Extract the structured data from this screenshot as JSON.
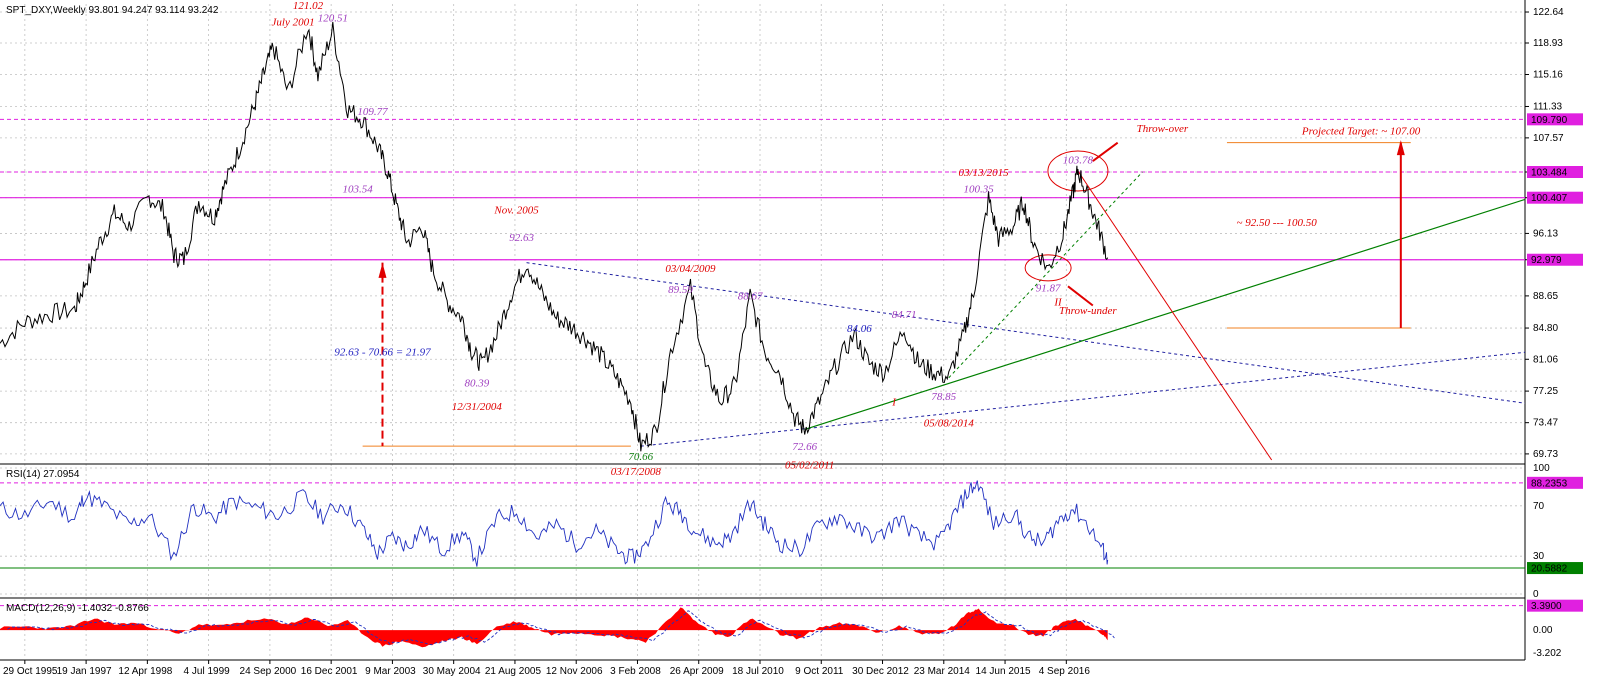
{
  "header": {
    "main": "SPT_DXY,Weekly  93.801 94.247 93.114 93.242",
    "rsi": "RSI(14) 27.0954",
    "macd": "MACD(12,26,9) -1.4032 -0.8766"
  },
  "colors": {
    "price": "#000000",
    "annotation_red": "#e00000",
    "annotation_purple": "#a040c0",
    "annotation_blue": "#2020c0",
    "annotation_green": "#108010",
    "level_magenta": "#e020e0",
    "trend_green": "#008000",
    "trend_blue": "#2020a0",
    "target_orange": "#f08020",
    "rsi_line": "#2030c0",
    "macd_fill": "#ff0000",
    "grid": "#c0c0c0"
  },
  "chart_data": [
    {
      "type": "line",
      "name": "price",
      "x_labels": [
        "29 Oct 1995",
        "19 Jan 1997",
        "12 Apr 1998",
        "4 Jul 1999",
        "24 Sep 2000",
        "16 Dec 2001",
        "9 Mar 2003",
        "30 May 2004",
        "21 Aug 2005",
        "12 Nov 2006",
        "3 Feb 2008",
        "26 Apr 2009",
        "18 Jul 2010",
        "9 Oct 2011",
        "30 Dec 2012",
        "23 Mar 2014",
        "14 Jun 2015",
        "4 Sep 2016"
      ],
      "x_range": [
        1995.3,
        2026.0
      ],
      "y_ticks": [
        122.64,
        118.93,
        115.16,
        111.33,
        107.57,
        103.484,
        100.407,
        96.13,
        92.979,
        88.65,
        84.8,
        81.06,
        77.25,
        73.47,
        69.73
      ],
      "y_range": [
        69.0,
        123.6
      ],
      "price_points": [
        [
          1995.3,
          83.0
        ],
        [
          1995.8,
          85.5
        ],
        [
          1996.3,
          86.5
        ],
        [
          1996.8,
          87.0
        ],
        [
          1997.0,
          90.0
        ],
        [
          1997.3,
          95.0
        ],
        [
          1997.6,
          98.5
        ],
        [
          1997.9,
          97.0
        ],
        [
          1998.3,
          100.5
        ],
        [
          1998.6,
          99.0
        ],
        [
          1998.8,
          93.5
        ],
        [
          1999.0,
          93.0
        ],
        [
          1999.3,
          100.0
        ],
        [
          1999.6,
          98.0
        ],
        [
          1999.8,
          101.5
        ],
        [
          2000.1,
          106.0
        ],
        [
          2000.4,
          111.0
        ],
        [
          2000.6,
          115.0
        ],
        [
          2000.8,
          118.5
        ],
        [
          2001.1,
          113.0
        ],
        [
          2001.5,
          121.02
        ],
        [
          2001.7,
          115.0
        ],
        [
          2002.0,
          120.51
        ],
        [
          2002.3,
          111.0
        ],
        [
          2002.6,
          109.77
        ],
        [
          2002.9,
          106.5
        ],
        [
          2003.1,
          103.54
        ],
        [
          2003.3,
          99.0
        ],
        [
          2003.5,
          95.0
        ],
        [
          2003.8,
          97.0
        ],
        [
          2004.0,
          92.0
        ],
        [
          2004.3,
          88.0
        ],
        [
          2004.6,
          86.0
        ],
        [
          2004.8,
          82.0
        ],
        [
          2005.0,
          80.39
        ],
        [
          2005.3,
          84.0
        ],
        [
          2005.6,
          89.0
        ],
        [
          2005.9,
          92.63
        ],
        [
          2006.2,
          89.0
        ],
        [
          2006.5,
          86.0
        ],
        [
          2006.8,
          85.0
        ],
        [
          2007.1,
          83.5
        ],
        [
          2007.4,
          81.5
        ],
        [
          2007.7,
          79.0
        ],
        [
          2008.0,
          76.0
        ],
        [
          2008.2,
          70.66
        ],
        [
          2008.5,
          72.5
        ],
        [
          2008.8,
          82.0
        ],
        [
          2009.2,
          89.59
        ],
        [
          2009.5,
          80.0
        ],
        [
          2009.8,
          76.0
        ],
        [
          2010.1,
          78.0
        ],
        [
          2010.4,
          88.67
        ],
        [
          2010.7,
          82.0
        ],
        [
          2011.0,
          79.5
        ],
        [
          2011.3,
          74.0
        ],
        [
          2011.5,
          72.66
        ],
        [
          2011.8,
          76.0
        ],
        [
          2012.1,
          80.0
        ],
        [
          2012.5,
          84.06
        ],
        [
          2012.8,
          80.5
        ],
        [
          2013.1,
          79.5
        ],
        [
          2013.5,
          84.71
        ],
        [
          2013.8,
          80.5
        ],
        [
          2014.1,
          79.5
        ],
        [
          2014.4,
          78.85
        ],
        [
          2014.7,
          84.0
        ],
        [
          2014.9,
          89.0
        ],
        [
          2015.2,
          100.35
        ],
        [
          2015.4,
          95.5
        ],
        [
          2015.7,
          97.0
        ],
        [
          2015.9,
          100.0
        ],
        [
          2016.1,
          95.0
        ],
        [
          2016.4,
          91.87
        ],
        [
          2016.7,
          96.0
        ],
        [
          2016.9,
          101.0
        ],
        [
          2017.0,
          103.78
        ],
        [
          2017.2,
          100.5
        ],
        [
          2017.4,
          97.0
        ],
        [
          2017.6,
          93.24
        ]
      ],
      "annotations": [
        {
          "text": "July 2001",
          "x": 2001.2,
          "y": 121.0
        },
        {
          "text": "121.02",
          "x": 2001.5,
          "y": 123.0
        },
        {
          "text": "120.51",
          "x": 2002.0,
          "y": 121.5
        },
        {
          "text": "109.77",
          "x": 2002.8,
          "y": 110.3
        },
        {
          "text": "103.54",
          "x": 2002.5,
          "y": 101.0
        },
        {
          "text": "Nov. 2005",
          "x": 2005.7,
          "y": 98.5
        },
        {
          "text": "92.63",
          "x": 2005.8,
          "y": 95.2
        },
        {
          "text": "03/04/2009",
          "x": 2009.2,
          "y": 91.5
        },
        {
          "text": "89.59",
          "x": 2009.0,
          "y": 89.0
        },
        {
          "text": "88.67",
          "x": 2010.4,
          "y": 88.2
        },
        {
          "text": "84.71",
          "x": 2013.5,
          "y": 86.0
        },
        {
          "text": "84.06",
          "x": 2012.6,
          "y": 84.3
        },
        {
          "text": "92.63 - 70.66 = 21.97",
          "x": 2003.0,
          "y": 81.5
        },
        {
          "text": "80.39",
          "x": 2004.9,
          "y": 77.8
        },
        {
          "text": "12/31/2004",
          "x": 2004.9,
          "y": 75.0
        },
        {
          "text": "78.85",
          "x": 2014.3,
          "y": 76.2
        },
        {
          "text": "05/08/2014",
          "x": 2014.4,
          "y": 73.0
        },
        {
          "text": "72.66",
          "x": 2011.5,
          "y": 70.2
        },
        {
          "text": "70.66",
          "x": 2008.2,
          "y": 69.0
        },
        {
          "text": "05/02/2011",
          "x": 2011.6,
          "y": 68.0
        },
        {
          "text": "03/17/2008",
          "x": 2008.1,
          "y": 67.2
        },
        {
          "text": "03/13/2015",
          "x": 2015.1,
          "y": 103.0
        },
        {
          "text": "100.35",
          "x": 2015.0,
          "y": 101.0
        },
        {
          "text": "103.78",
          "x": 2017.0,
          "y": 104.5
        },
        {
          "text": "Throw-over",
          "x": 2018.7,
          "y": 108.3
        },
        {
          "text": "91.87",
          "x": 2016.4,
          "y": 89.2
        },
        {
          "text": "Throw-under",
          "x": 2017.2,
          "y": 86.5
        },
        {
          "text": "~ 92.50 --- 100.50",
          "x": 2021.0,
          "y": 97.0
        },
        {
          "text": "Projected Target:  ~ 107.00",
          "x": 2022.7,
          "y": 108.0
        },
        {
          "text": "I",
          "x": 2013.3,
          "y": 75.5
        },
        {
          "text": "II",
          "x": 2016.6,
          "y": 87.5
        }
      ],
      "level_badges": [
        {
          "value": "109.790",
          "y": 109.79
        },
        {
          "value": "103.484",
          "y": 103.484
        },
        {
          "value": "100.407",
          "y": 100.407
        },
        {
          "value": "92.979",
          "y": 92.979
        }
      ]
    },
    {
      "type": "line",
      "name": "RSI(14)",
      "y_ticks": [
        100,
        70,
        30,
        0
      ],
      "y_range": [
        0,
        100
      ],
      "levels": [
        88.2353,
        20.5882
      ],
      "level_badges": [
        "88.2353",
        "20.5882"
      ],
      "rsi_points": [
        [
          1995.3,
          68
        ],
        [
          1995.8,
          62
        ],
        [
          1996.3,
          74
        ],
        [
          1996.8,
          60
        ],
        [
          1997.0,
          78
        ],
        [
          1997.4,
          70
        ],
        [
          1997.9,
          55
        ],
        [
          1998.3,
          62
        ],
        [
          1998.8,
          30
        ],
        [
          1999.2,
          70
        ],
        [
          1999.6,
          60
        ],
        [
          2000.0,
          74
        ],
        [
          2000.5,
          68
        ],
        [
          2000.9,
          62
        ],
        [
          2001.4,
          78
        ],
        [
          2001.8,
          62
        ],
        [
          2002.2,
          72
        ],
        [
          2002.6,
          52
        ],
        [
          2002.9,
          32
        ],
        [
          2003.2,
          45
        ],
        [
          2003.5,
          38
        ],
        [
          2003.8,
          52
        ],
        [
          2004.2,
          35
        ],
        [
          2004.6,
          48
        ],
        [
          2004.9,
          28
        ],
        [
          2005.3,
          60
        ],
        [
          2005.7,
          66
        ],
        [
          2006.1,
          45
        ],
        [
          2006.5,
          55
        ],
        [
          2006.9,
          40
        ],
        [
          2007.3,
          50
        ],
        [
          2007.7,
          35
        ],
        [
          2008.0,
          28
        ],
        [
          2008.3,
          38
        ],
        [
          2008.7,
          72
        ],
        [
          2009.0,
          65
        ],
        [
          2009.3,
          50
        ],
        [
          2009.7,
          40
        ],
        [
          2010.0,
          45
        ],
        [
          2010.4,
          72
        ],
        [
          2010.7,
          55
        ],
        [
          2011.0,
          40
        ],
        [
          2011.4,
          35
        ],
        [
          2011.8,
          55
        ],
        [
          2012.2,
          62
        ],
        [
          2012.6,
          50
        ],
        [
          2013.0,
          45
        ],
        [
          2013.4,
          60
        ],
        [
          2013.8,
          45
        ],
        [
          2014.2,
          40
        ],
        [
          2014.5,
          62
        ],
        [
          2014.8,
          82
        ],
        [
          2015.0,
          88
        ],
        [
          2015.3,
          55
        ],
        [
          2015.7,
          65
        ],
        [
          2016.0,
          45
        ],
        [
          2016.3,
          40
        ],
        [
          2016.6,
          58
        ],
        [
          2016.9,
          68
        ],
        [
          2017.2,
          55
        ],
        [
          2017.5,
          35
        ],
        [
          2017.6,
          27.1
        ]
      ]
    },
    {
      "type": "area",
      "name": "MACD(12,26,9)",
      "y_ticks": [
        3.39,
        0.0,
        -3.202
      ],
      "y_range": [
        -3.6,
        3.9
      ],
      "level_badges": [
        "3.3900"
      ],
      "macd_points": [
        [
          1995.3,
          0.3
        ],
        [
          1995.8,
          0.5
        ],
        [
          1996.3,
          0.2
        ],
        [
          1996.8,
          0.6
        ],
        [
          1997.2,
          1.6
        ],
        [
          1997.6,
          0.8
        ],
        [
          1998.0,
          1.0
        ],
        [
          1998.5,
          0.2
        ],
        [
          1998.9,
          -0.6
        ],
        [
          1999.3,
          0.8
        ],
        [
          1999.8,
          0.6
        ],
        [
          2000.2,
          1.2
        ],
        [
          2000.7,
          1.5
        ],
        [
          2001.1,
          0.8
        ],
        [
          2001.5,
          1.8
        ],
        [
          2001.9,
          0.6
        ],
        [
          2002.3,
          1.2
        ],
        [
          2002.7,
          -1.0
        ],
        [
          2003.0,
          -2.2
        ],
        [
          2003.4,
          -1.5
        ],
        [
          2003.8,
          -2.4
        ],
        [
          2004.2,
          -1.6
        ],
        [
          2004.6,
          -1.0
        ],
        [
          2004.9,
          -2.0
        ],
        [
          2005.3,
          0.5
        ],
        [
          2005.7,
          1.2
        ],
        [
          2006.0,
          0.4
        ],
        [
          2006.4,
          -0.6
        ],
        [
          2006.8,
          -0.3
        ],
        [
          2007.2,
          -0.5
        ],
        [
          2007.6,
          -0.8
        ],
        [
          2008.0,
          -1.2
        ],
        [
          2008.3,
          -1.6
        ],
        [
          2008.7,
          1.0
        ],
        [
          2009.0,
          3.2
        ],
        [
          2009.3,
          1.2
        ],
        [
          2009.7,
          -0.6
        ],
        [
          2010.0,
          -0.8
        ],
        [
          2010.4,
          1.6
        ],
        [
          2010.7,
          0.6
        ],
        [
          2011.0,
          -0.6
        ],
        [
          2011.4,
          -1.2
        ],
        [
          2011.8,
          0.4
        ],
        [
          2012.2,
          0.9
        ],
        [
          2012.6,
          0.6
        ],
        [
          2013.0,
          -0.4
        ],
        [
          2013.4,
          0.6
        ],
        [
          2013.8,
          -0.4
        ],
        [
          2014.2,
          -0.6
        ],
        [
          2014.5,
          0.6
        ],
        [
          2014.8,
          2.4
        ],
        [
          2015.0,
          3.0
        ],
        [
          2015.3,
          1.2
        ],
        [
          2015.7,
          0.6
        ],
        [
          2016.0,
          -0.6
        ],
        [
          2016.3,
          -0.8
        ],
        [
          2016.6,
          0.8
        ],
        [
          2016.9,
          1.6
        ],
        [
          2017.2,
          0.6
        ],
        [
          2017.5,
          -0.5
        ],
        [
          2017.6,
          -1.4
        ]
      ]
    }
  ]
}
